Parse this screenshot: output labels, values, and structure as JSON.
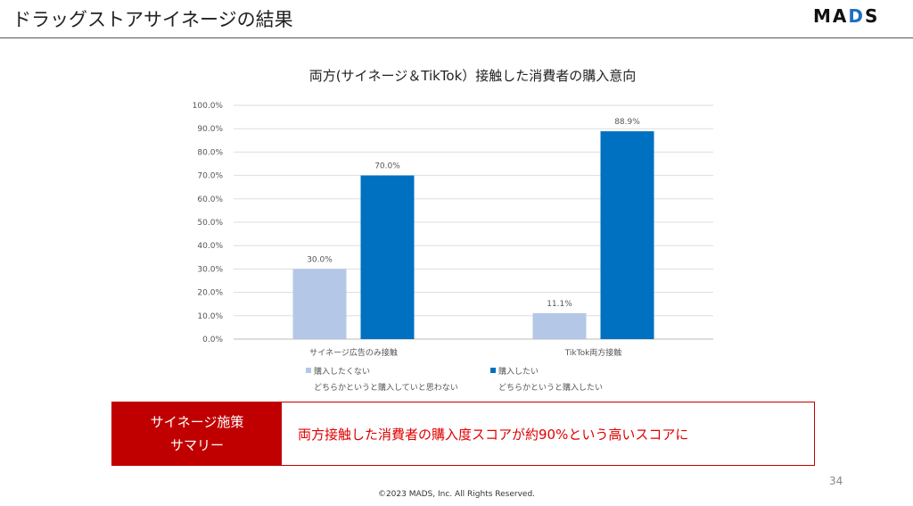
{
  "header": {
    "title": "ドラッグストアサイネージの結果",
    "logo": "MADS"
  },
  "chart_data": {
    "type": "bar",
    "title": "両方(サイネージ＆TikTok）接触した消費者の購入意向",
    "categories": [
      "サイネージ広告のみ接触",
      "TikTok両方接触"
    ],
    "series": [
      {
        "name": "購入したくない\nどちらかというと購入していと思わない",
        "line1": "購入したくない",
        "line2": "どちらかというと購入していと思わない",
        "color": "#b4c7e7",
        "values": [
          30.0,
          11.1
        ],
        "labels": [
          "30.0%",
          "11.1%"
        ]
      },
      {
        "name": "購入したい\nどちらかというと購入したい",
        "line1": "購入したい",
        "line2": "どちらかというと購入したい",
        "color": "#0070c0",
        "values": [
          70.0,
          88.9
        ],
        "labels": [
          "70.0%",
          "88.9%"
        ]
      }
    ],
    "ylim": [
      0,
      100
    ],
    "yticks": [
      "0.0%",
      "10.0%",
      "20.0%",
      "30.0%",
      "40.0%",
      "50.0%",
      "60.0%",
      "70.0%",
      "80.0%",
      "90.0%",
      "100.0%"
    ],
    "grid": true,
    "legend": "bottom"
  },
  "summary": {
    "label": "サイネージ施策\nサマリー",
    "text": "両方接触した消費者の購入度スコアが約90%という高いスコアに"
  },
  "footer": {
    "page": "34",
    "copyright": "©2023 MADS, Inc. All Rights Reserved."
  }
}
